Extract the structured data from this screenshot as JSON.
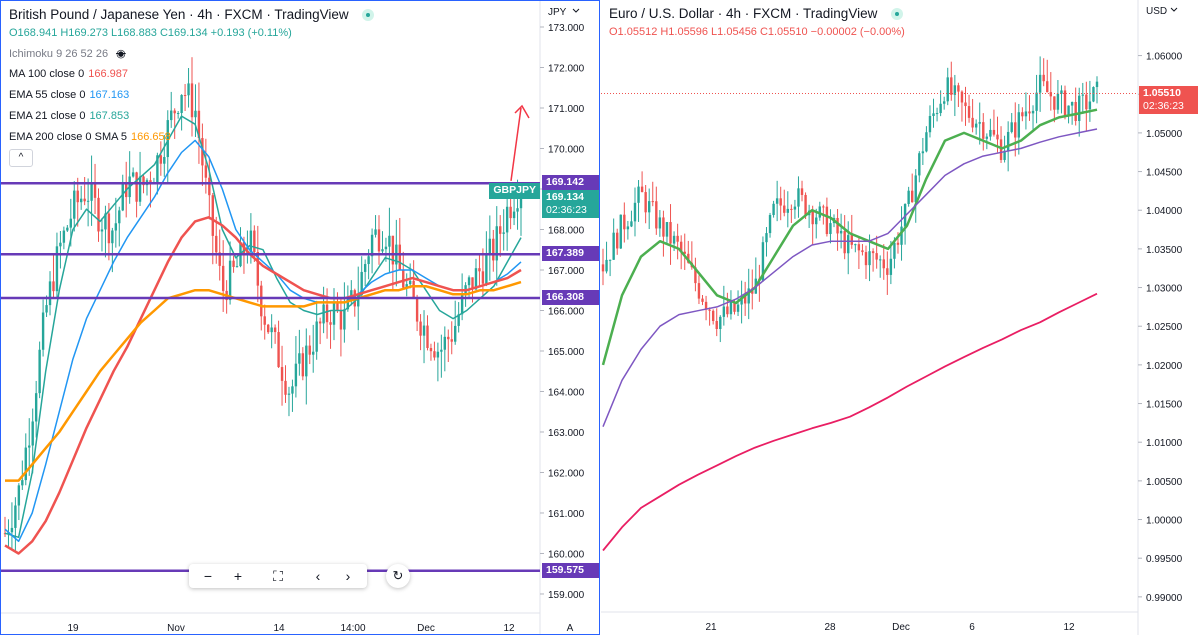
{
  "left": {
    "title": "British Pound / Japanese Yen · 4h · FXCM · TradingView",
    "ohlc": [
      {
        "k": "O",
        "v": "168.941"
      },
      {
        "k": "H",
        "v": "169.273"
      },
      {
        "k": "L",
        "v": "168.883"
      },
      {
        "k": "C",
        "v": "169.134"
      },
      {
        "k": "",
        "v": "+0.193 (+0.11%)"
      }
    ],
    "indicators": [
      {
        "name": "Ichimoku 9 26 52 26",
        "value": "",
        "color": "#787b86"
      },
      {
        "name": "MA 100 close 0",
        "value": "166.987",
        "color": "#ef5350"
      },
      {
        "name": "EMA 55 close 0",
        "value": "167.163",
        "color": "#2196f3"
      },
      {
        "name": "EMA 21 close 0",
        "value": "167.853",
        "color": "#26a69a"
      },
      {
        "name": "EMA 200 close 0 SMA 5",
        "value": "166.658",
        "color": "#ff9800"
      }
    ],
    "currency": "JPY",
    "y_ticks": [
      "173.000",
      "172.000",
      "171.000",
      "170.000",
      "169.000",
      "168.000",
      "167.000",
      "166.000",
      "165.000",
      "164.000",
      "163.000",
      "162.000",
      "161.000",
      "160.000",
      "159.000"
    ],
    "x_ticks": [
      "19",
      "Nov",
      "14",
      "14:00",
      "Dec",
      "12"
    ],
    "auto_label": "A",
    "levels": [
      {
        "value": "169.142",
        "y": 169.142
      },
      {
        "value": "167.389",
        "y": 167.389
      },
      {
        "value": "166.308",
        "y": 166.308
      },
      {
        "value": "159.575",
        "y": 159.575
      }
    ],
    "symbol_badge": "GBPJPY",
    "last_price": "169.134",
    "countdown": "02:36:23",
    "toolbar": {
      "zoom_out": "−",
      "zoom_in": "+",
      "fit": "⛶",
      "back": "‹",
      "forward": "›",
      "reset": "↻"
    }
  },
  "right": {
    "title": "Euro / U.S. Dollar · 4h · FXCM · TradingView",
    "ohlc": [
      {
        "k": "O",
        "v": "1.05512"
      },
      {
        "k": "H",
        "v": "1.05596"
      },
      {
        "k": "L",
        "v": "1.05456"
      },
      {
        "k": "C",
        "v": "1.05510"
      },
      {
        "k": "",
        "v": "−0.00002 (−0.00%)"
      }
    ],
    "currency": "USD",
    "y_ticks": [
      "1.06000",
      "1.05500",
      "1.05000",
      "1.04500",
      "1.04000",
      "1.03500",
      "1.03000",
      "1.02500",
      "1.02000",
      "1.01500",
      "1.01000",
      "1.00500",
      "1.00000",
      "0.99500",
      "0.99000"
    ],
    "x_ticks": [
      "21",
      "28",
      "Dec",
      "6",
      "12"
    ],
    "last_price": "1.05510",
    "countdown": "02:36:23"
  },
  "colors": {
    "up": "#26a69a",
    "down": "#ef5350",
    "level": "#673ab7",
    "border": "#2962ff",
    "ema21": "#26a69a",
    "ema55": "#2196f3",
    "ma100": "#ef5350",
    "ema200": "#ff9800",
    "eu_green": "#4caf50",
    "eu_purple": "#7e57c2",
    "eu_pink": "#e91e63"
  },
  "chart_data": [
    {
      "type": "line",
      "title": "British Pound / Japanese Yen · 4h · FXCM · TradingView",
      "ylim": [
        158.6,
        173.3
      ],
      "x_labels": [
        "19",
        "Nov",
        "14",
        "14:00",
        "Dec",
        "12"
      ],
      "series": [
        {
          "name": "EMA 21 close 0",
          "values": [
            160.5,
            160.4,
            162.0,
            164.5,
            166.5,
            168.0,
            168.5,
            168.2,
            168.6,
            169.0,
            169.3,
            169.6,
            170.2,
            170.8,
            170.6,
            169.5,
            168.0,
            167.3,
            167.6,
            167.5,
            166.8,
            166.2,
            166.0,
            165.9,
            166.0,
            166.0,
            166.3,
            166.8,
            167.3,
            167.2,
            167.0,
            166.5,
            166.0,
            165.8,
            166.0,
            166.3,
            166.6,
            167.2,
            167.8
          ]
        },
        {
          "name": "EMA 55 close 0",
          "values": [
            160.6,
            160.3,
            161.0,
            162.2,
            163.5,
            164.8,
            165.8,
            166.5,
            167.2,
            167.8,
            168.3,
            168.8,
            169.4,
            169.9,
            170.2,
            169.8,
            169.0,
            168.0,
            167.5,
            167.2,
            166.9,
            166.5,
            166.3,
            166.2,
            166.2,
            166.2,
            166.4,
            166.7,
            166.9,
            167.0,
            167.0,
            166.8,
            166.6,
            166.5,
            166.5,
            166.6,
            166.7,
            166.9,
            167.2
          ]
        },
        {
          "name": "MA 100 close 0",
          "values": [
            160.2,
            160.0,
            160.3,
            160.8,
            161.5,
            162.3,
            163.1,
            163.8,
            164.5,
            165.1,
            165.8,
            166.5,
            167.2,
            167.8,
            168.2,
            168.3,
            168.1,
            167.8,
            167.4,
            167.1,
            166.9,
            166.7,
            166.5,
            166.4,
            166.3,
            166.3,
            166.4,
            166.5,
            166.6,
            166.7,
            166.8,
            166.7,
            166.6,
            166.5,
            166.5,
            166.6,
            166.7,
            166.8,
            167.0
          ]
        },
        {
          "name": "EMA 200 close 0 SMA 5",
          "values": [
            161.8,
            161.8,
            162.2,
            162.6,
            163.0,
            163.5,
            164.0,
            164.5,
            164.9,
            165.3,
            165.7,
            166.0,
            166.3,
            166.4,
            166.5,
            166.5,
            166.4,
            166.3,
            166.2,
            166.1,
            166.1,
            166.1,
            166.1,
            166.2,
            166.2,
            166.2,
            166.3,
            166.4,
            166.5,
            166.5,
            166.6,
            166.6,
            166.5,
            166.4,
            166.4,
            166.5,
            166.5,
            166.6,
            166.7
          ]
        }
      ],
      "candle_trace": [
        160.5,
        161.5,
        163.5,
        166.0,
        167.5,
        168.5,
        169.0,
        168.3,
        168.0,
        169.2,
        169.0,
        169.5,
        170.5,
        171.5,
        171.0,
        168.5,
        166.5,
        167.0,
        167.8,
        166.0,
        165.0,
        164.0,
        164.8,
        165.5,
        166.0,
        165.8,
        166.5,
        167.8,
        168.0,
        167.0,
        166.2,
        165.5,
        165.0,
        165.5,
        166.5,
        167.0,
        167.5,
        168.5,
        169.134
      ],
      "levels": [
        169.142,
        167.389,
        166.308,
        159.575
      ]
    },
    {
      "type": "line",
      "title": "Euro / U.S. Dollar · 4h · FXCM · TradingView",
      "ylim": [
        0.9875,
        1.0652
      ],
      "x_labels": [
        "21",
        "28",
        "Dec",
        "6",
        "12"
      ],
      "series": [
        {
          "name": "",
          "values": [
            1.02,
            1.029,
            1.034,
            1.036,
            1.035,
            1.032,
            1.029,
            1.028,
            1.03,
            1.034,
            1.038,
            1.04,
            1.039,
            1.037,
            1.036,
            1.035,
            1.038,
            1.044,
            1.049,
            1.05,
            1.049,
            1.048,
            1.049,
            1.051,
            1.052,
            1.0525,
            1.053
          ]
        },
        {
          "name": "",
          "values": [
            1.012,
            1.018,
            1.022,
            1.025,
            1.0265,
            1.027,
            1.0275,
            1.0285,
            1.03,
            1.032,
            1.034,
            1.0355,
            1.036,
            1.036,
            1.036,
            1.037,
            1.0395,
            1.042,
            1.0445,
            1.046,
            1.047,
            1.0475,
            1.048,
            1.0488,
            1.0495,
            1.05,
            1.0505
          ]
        },
        {
          "name": "",
          "values": [
            0.996,
            0.999,
            1.0015,
            1.003,
            1.0045,
            1.0058,
            1.007,
            1.0082,
            1.0093,
            1.0102,
            1.011,
            1.0118,
            1.0125,
            1.0133,
            1.0145,
            1.0158,
            1.0172,
            1.0185,
            1.0198,
            1.021,
            1.0222,
            1.0233,
            1.0245,
            1.0255,
            1.0268,
            1.028,
            1.0292
          ]
        }
      ],
      "candle_trace": [
        1.033,
        1.038,
        1.042,
        1.038,
        1.035,
        1.03,
        1.026,
        1.027,
        1.03,
        1.04,
        1.042,
        1.04,
        1.038,
        1.035,
        1.034,
        1.033,
        1.04,
        1.05,
        1.056,
        1.053,
        1.051,
        1.048,
        1.052,
        1.056,
        1.054,
        1.053,
        1.0551
      ],
      "last": 1.0551
    }
  ]
}
